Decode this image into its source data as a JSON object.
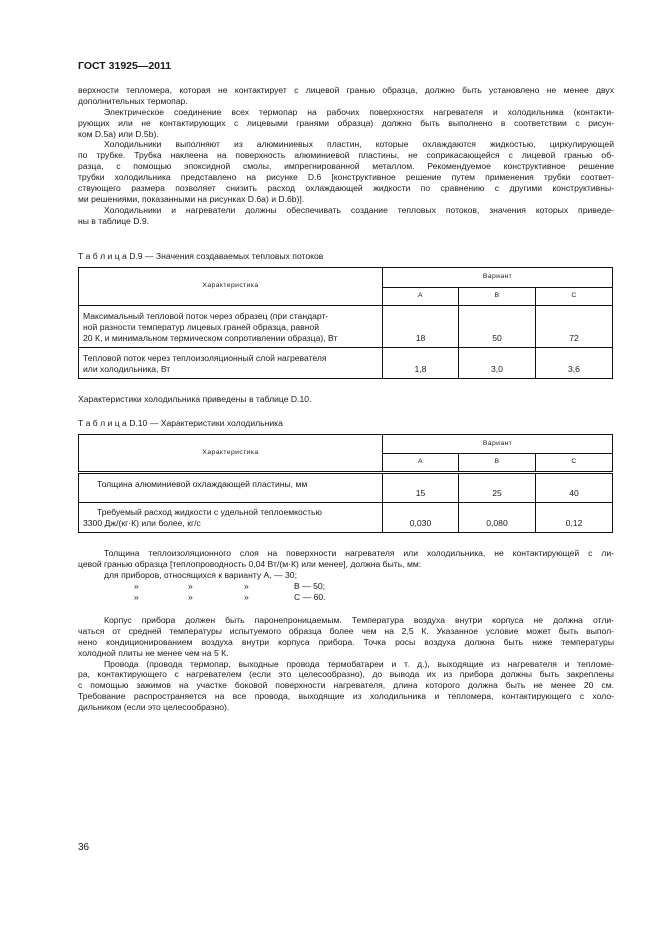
{
  "header": {
    "title": "ГОСТ 31925—2011"
  },
  "intro_paragraphs": [
    {
      "indent": false,
      "lines": [
        "верхности тепломера, которая не контактирует с лицевой гранью образца, должно быть установлено не менее двух",
        "дополнительных термопар."
      ]
    },
    {
      "indent": true,
      "lines": [
        "Электрическое соединение всех термопар на рабочих поверхностях нагревателя и холодильника (контакти-",
        "рующих или не контактирующих с лицевыми гранями образца) должно быть выполнено в соответствии с рисун-",
        "ком D.5a) или D.5b)."
      ]
    },
    {
      "indent": true,
      "lines": [
        "Холодильники выполняют из алюминиевых пластин, которые охлаждаются жидкостью, циркулирующей",
        "по трубке. Трубка наклеена на поверхность алюминиевой пластины, не соприкасающейся с лицевой гранью об-",
        "разца, с помощью эпоксидной смолы, импрегнированной металлом. Рекомендуемое конструктивное решение",
        "трубки холодильника представлено на рисунке D.6 [конструктивное решение путем применения трубки соответ-",
        "ствующего размера позволяет снизить расход охлаждающей жидкости по сравнению с другими конструктивны-",
        "ми решениями, показанными на рисунках D.6a) и D.6b)]."
      ]
    },
    {
      "indent": true,
      "lines": [
        "Холодильники и нагреватели должны обеспечивать создание тепловых потоков, значения которых приведе-",
        "ны в таблице D.9."
      ]
    }
  ],
  "table_d9": {
    "caption_prefix": "Т а б л и ц а",
    "caption": "D.9 — Значения создаваемых тепловых потоков",
    "col_header": "Характеристика",
    "group_header": "Вариант",
    "variants": [
      "A",
      "B",
      "C"
    ],
    "rows": [
      {
        "label_lines": [
          "Максимальный тепловой поток через образец (при стандарт-",
          "ной разности температур лицевых граней образца, равной",
          "20 К, и минимальном термическом сопротивлении образца), Вт"
        ],
        "values": [
          "18",
          "50",
          "72"
        ]
      },
      {
        "label_lines": [
          "Тепловой поток через теплоизоляционный слой нагревателя",
          "или холодильника, Вт"
        ],
        "values": [
          "1,8",
          "3,0",
          "3,6"
        ]
      }
    ]
  },
  "between_text": "Характеристики холодильника приведены в таблице D.10.",
  "table_d10": {
    "caption_prefix": "Т а б л и ц а",
    "caption": "D.10 — Характеристики холодильника",
    "col_header": "Характеристика",
    "group_header": "Вариант",
    "variants": [
      "A",
      "B",
      "C"
    ],
    "rows": [
      {
        "label_lines": [
          "Толщина алюминиевой охлаждающей пластины, мм"
        ],
        "values": [
          "15",
          "25",
          "40"
        ]
      },
      {
        "label_lines": [
          "Требуемый расход жидкости с удельной теплоемкостью",
          "3300 Дж/(кг·К) или более, кг/с"
        ],
        "values": [
          "0,030",
          "0,080",
          "0,12"
        ]
      }
    ]
  },
  "insulation": {
    "lines": [
      "Толщина теплоизоляционного слоя на поверхности нагревателя или холодильника, не контактирующей с ли-",
      "цевой гранью образца [теплопроводность 0,04 Вт/(м·К) или менее], должна быть, мм:"
    ],
    "list_first": "для приборов, относящихся к варианту А, — 30;",
    "ditto": "»",
    "list_b": "В — 50;",
    "list_c": "С — 60."
  },
  "closing_paragraphs": [
    {
      "indent": true,
      "lines": [
        "Корпус прибора должен быть паронепроницаемым. Температура воздуха внутри корпуса не должна отли-",
        "чаться от средней температуры испытуемого образца более чем на 2,5 К. Указанное условие может быть выпол-",
        "нено кондиционированием воздуха внутри корпуса прибора. Точка росы воздуха должна быть ниже температуры",
        "холодной плиты не менее чем на 5 К."
      ]
    },
    {
      "indent": true,
      "lines": [
        "Провода (провода термопар, выходные провода термобатареи и т. д.), выходящие из нагревателя и тепломе-",
        "ра, контактирующего с нагревателем (если это целесообразно), до вывода их из прибора должны быть закреплены",
        "с помощью зажимов на участке боковой поверхности нагревателя, длина которого должна быть не менее 20 см.",
        "Требование распространяется на все провода, выходящие из холодильника и тепломера, контактирующего с холо-",
        "дильником (если это целесообразно)."
      ]
    }
  ],
  "page_number": "36"
}
